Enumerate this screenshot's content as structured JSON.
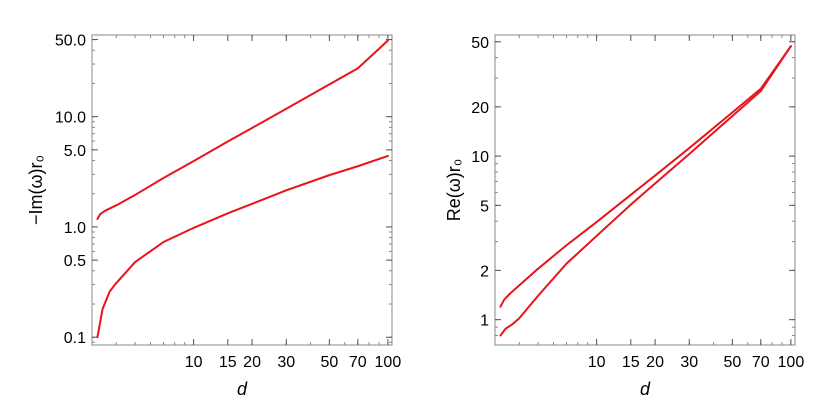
{
  "chart_data": [
    {
      "type": "line",
      "xlabel": "d",
      "ylabel": "−Im(ω)r₀",
      "xscale": "log",
      "yscale": "log",
      "xlim": [
        3,
        105
      ],
      "ylim": [
        0.085,
        55
      ],
      "x_ticks": [
        10,
        15,
        20,
        30,
        50,
        70,
        100
      ],
      "x_tick_labels": [
        "10",
        "15",
        "20",
        "30",
        "50",
        "70",
        "100"
      ],
      "y_ticks": [
        0.1,
        0.5,
        1.0,
        5.0,
        10.0,
        50.0
      ],
      "y_tick_labels": [
        "0.1",
        "0.5",
        "1.0",
        "5.0",
        "10.0",
        "50.0"
      ],
      "grid": false,
      "color": "#e8141b",
      "series": [
        {
          "x": [
            3.2,
            3.3,
            3.5,
            4,
            5,
            7,
            10,
            15,
            20,
            30,
            50,
            70,
            100
          ],
          "y": [
            1.18,
            1.3,
            1.4,
            1.57,
            1.95,
            2.78,
            3.95,
            5.95,
            7.9,
            11.8,
            19.6,
            27.4,
            49
          ]
        },
        {
          "x": [
            3.2,
            3.4,
            3.7,
            4,
            5,
            7,
            10,
            15,
            20,
            30,
            50,
            70,
            100
          ],
          "y": [
            0.1,
            0.18,
            0.26,
            0.31,
            0.48,
            0.73,
            0.98,
            1.33,
            1.62,
            2.15,
            2.95,
            3.55,
            4.4
          ]
        }
      ]
    },
    {
      "type": "line",
      "xlabel": "d",
      "ylabel": "Re(ω)r₀",
      "xscale": "log",
      "yscale": "log",
      "xlim": [
        3,
        105
      ],
      "ylim": [
        0.7,
        55
      ],
      "x_ticks": [
        10,
        15,
        20,
        30,
        50,
        70,
        100
      ],
      "x_tick_labels": [
        "10",
        "15",
        "20",
        "30",
        "50",
        "70",
        "100"
      ],
      "y_ticks": [
        1,
        2,
        5,
        10,
        20,
        50
      ],
      "y_tick_labels": [
        "1",
        "2",
        "5",
        "10",
        "20",
        "50"
      ],
      "grid": false,
      "color": "#e8141b",
      "series": [
        {
          "x": [
            3.2,
            3.35,
            3.6,
            4,
            5,
            7,
            10,
            15,
            20,
            30,
            50,
            70,
            100
          ],
          "y": [
            1.2,
            1.33,
            1.45,
            1.62,
            2.05,
            2.85,
            3.95,
            5.8,
            7.6,
            11.2,
            18.5,
            25.8,
            47
          ]
        },
        {
          "x": [
            3.2,
            3.4,
            3.7,
            4,
            5,
            7,
            10,
            15,
            20,
            30,
            50,
            70,
            100
          ],
          "y": [
            0.8,
            0.88,
            0.94,
            1.02,
            1.4,
            2.2,
            3.25,
            5.05,
            6.8,
            10.3,
            17.6,
            25,
            47
          ]
        }
      ]
    }
  ]
}
